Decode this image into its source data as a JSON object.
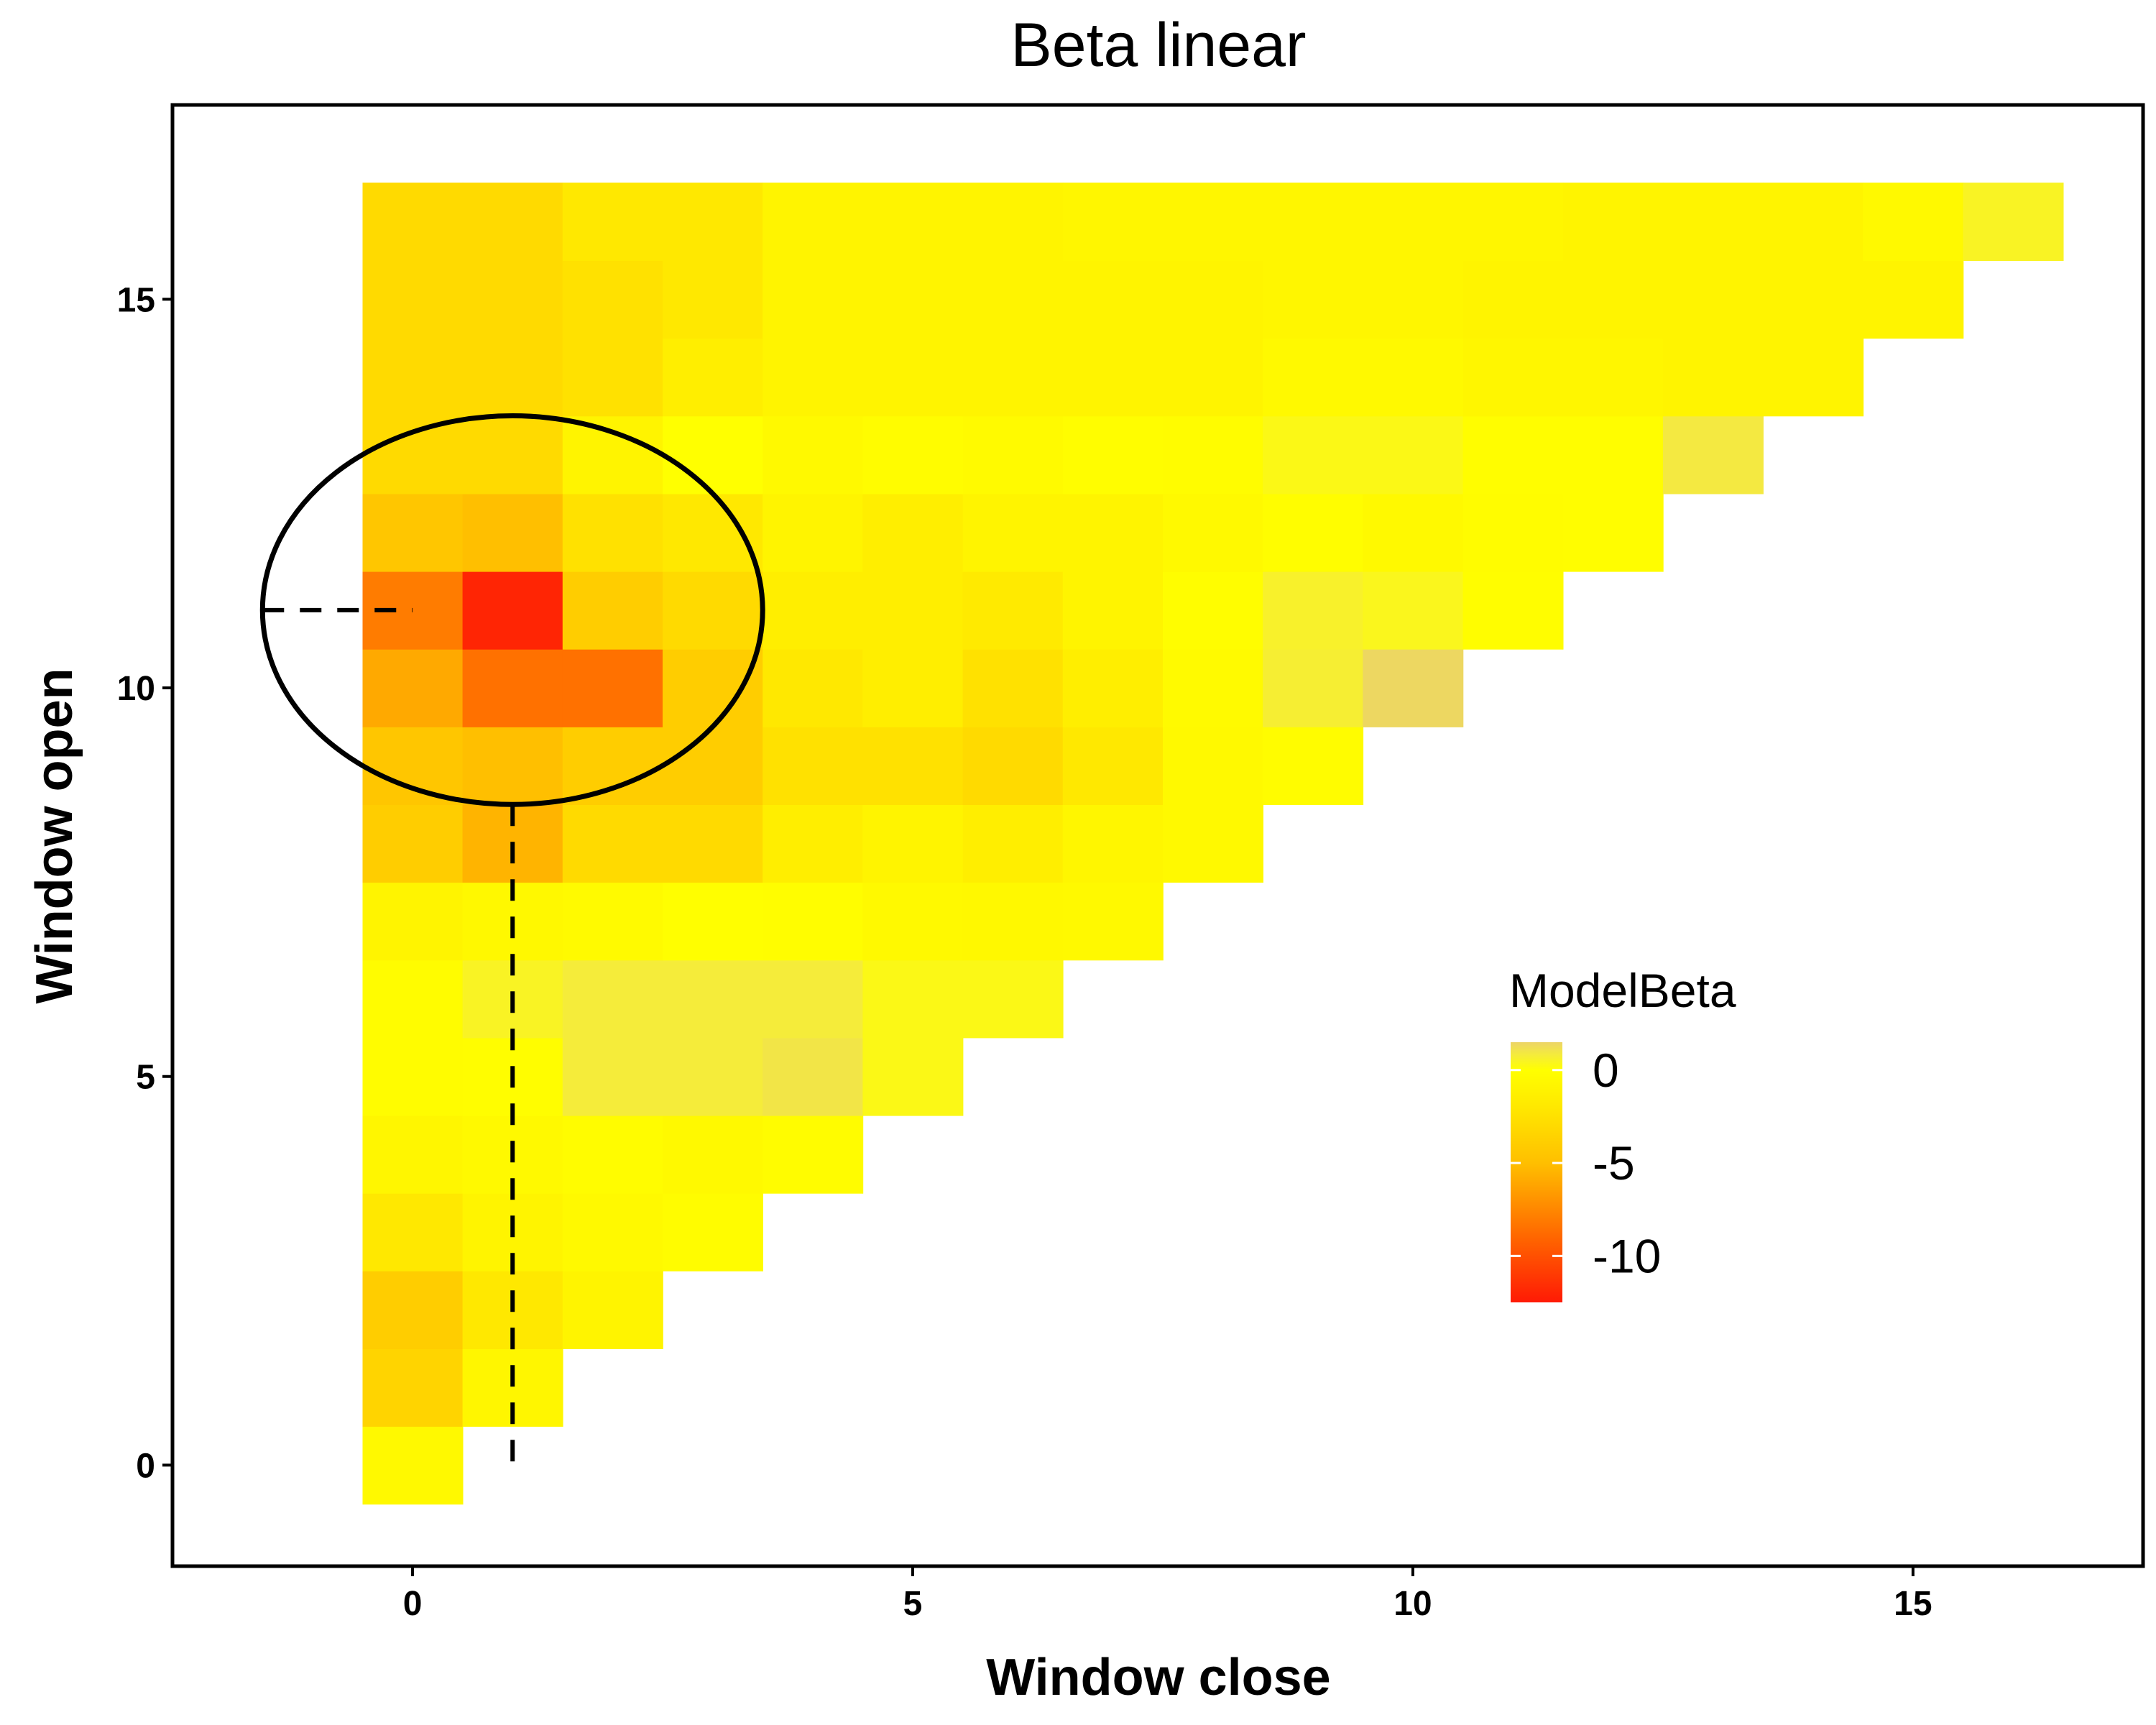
{
  "chart_data": {
    "type": "heatmap",
    "title": "Beta linear",
    "xlabel": "Window close",
    "ylabel": "Window open",
    "x_ticks": [
      "0",
      "5",
      "10",
      "15"
    ],
    "y_ticks": [
      "0",
      "5",
      "10",
      "15"
    ],
    "xlim": [
      -2.4,
      17.3
    ],
    "ylim": [
      -1.3,
      17.5
    ],
    "grid": false,
    "legend": {
      "title": "ModelBeta",
      "labels": [
        "0",
        "-5",
        "-10"
      ],
      "range": [
        -12.5,
        1.5
      ],
      "position": "right-center",
      "color_stops": [
        {
          "value": -12.5,
          "color": "#ff1a05"
        },
        {
          "value": -9,
          "color": "#ff6600"
        },
        {
          "value": -5,
          "color": "#ffbf00"
        },
        {
          "value": -2,
          "color": "#ffe800"
        },
        {
          "value": 0,
          "color": "#ffff00"
        },
        {
          "value": 0.8,
          "color": "#f5ec3a"
        },
        {
          "value": 1.5,
          "color": "#ecd468"
        }
      ]
    },
    "x": [
      0,
      1,
      2,
      3,
      4,
      5,
      6,
      7,
      8,
      9,
      10,
      11,
      12,
      13,
      14,
      15,
      16
    ],
    "y": [
      0,
      1,
      2,
      3,
      4,
      5,
      6,
      7,
      8,
      9,
      10,
      11,
      12,
      13,
      14,
      15,
      16
    ],
    "values": [
      [
        -0.5,
        null,
        null,
        null,
        null,
        null,
        null,
        null,
        null,
        null,
        null,
        null,
        null,
        null,
        null,
        null,
        null
      ],
      [
        -3.5,
        -0.8,
        null,
        null,
        null,
        null,
        null,
        null,
        null,
        null,
        null,
        null,
        null,
        null,
        null,
        null,
        null
      ],
      [
        -4.0,
        -2.0,
        -1.0,
        null,
        null,
        null,
        null,
        null,
        null,
        null,
        null,
        null,
        null,
        null,
        null,
        null,
        null
      ],
      [
        -2.0,
        -1.0,
        -0.5,
        -0.3,
        null,
        null,
        null,
        null,
        null,
        null,
        null,
        null,
        null,
        null,
        null,
        null,
        null
      ],
      [
        -0.8,
        -0.5,
        -0.3,
        -0.5,
        -0.3,
        null,
        null,
        null,
        null,
        null,
        null,
        null,
        null,
        null,
        null,
        null,
        null
      ],
      [
        -0.3,
        -0.2,
        0.8,
        0.8,
        1.0,
        0.3,
        null,
        null,
        null,
        null,
        null,
        null,
        null,
        null,
        null,
        null,
        null
      ],
      [
        -0.3,
        0.5,
        0.8,
        0.8,
        0.8,
        0.3,
        0.3,
        null,
        null,
        null,
        null,
        null,
        null,
        null,
        null,
        null,
        null
      ],
      [
        -1.0,
        -0.6,
        -0.4,
        -0.1,
        -0.2,
        -0.5,
        -0.6,
        -0.5,
        null,
        null,
        null,
        null,
        null,
        null,
        null,
        null,
        null
      ],
      [
        -4.0,
        -5.5,
        -3.0,
        -3.0,
        -1.5,
        -1.0,
        -1.5,
        -0.8,
        -0.5,
        null,
        null,
        null,
        null,
        null,
        null,
        null,
        null
      ],
      [
        -4.5,
        -5.0,
        -4.0,
        -4.0,
        -2.5,
        -2.5,
        -3.0,
        -2.0,
        -0.5,
        -0.3,
        null,
        null,
        null,
        null,
        null,
        null,
        null
      ],
      [
        -6.0,
        -8.5,
        -8.5,
        -4.0,
        -2.0,
        -1.5,
        -2.5,
        -1.5,
        -0.4,
        0.7,
        1.4,
        null,
        null,
        null,
        null,
        null,
        null
      ],
      [
        -8.0,
        -12.0,
        -4.0,
        -3.0,
        -1.5,
        -1.5,
        -1.8,
        -1.0,
        -0.2,
        0.6,
        0.4,
        -0.2,
        null,
        null,
        null,
        null,
        null
      ],
      [
        -4.5,
        -5.0,
        -2.5,
        -2.0,
        -1.0,
        -1.5,
        -1.0,
        -1.0,
        -0.5,
        -0.2,
        -0.5,
        -0.3,
        -0.2,
        null,
        null,
        null,
        null
      ],
      [
        -3.0,
        -3.0,
        -1.0,
        0.0,
        -0.5,
        -0.3,
        -0.4,
        -0.2,
        -0.3,
        0.3,
        0.3,
        -0.2,
        -0.2,
        0.9,
        null,
        null,
        null
      ],
      [
        -3.0,
        -3.0,
        -2.5,
        -1.5,
        -1.0,
        -1.0,
        -1.0,
        -1.0,
        -1.0,
        -0.5,
        -0.5,
        -0.8,
        -0.8,
        -1.0,
        -1.0,
        null,
        null
      ],
      [
        -3.0,
        -3.0,
        -2.5,
        -2.0,
        -1.0,
        -1.0,
        -1.0,
        -1.0,
        -1.0,
        -0.8,
        -0.8,
        -1.0,
        -1.0,
        -1.0,
        -1.0,
        -1.0,
        null
      ],
      [
        -3.0,
        -3.0,
        -2.0,
        -2.0,
        -1.0,
        -1.0,
        -1.0,
        -0.8,
        -0.8,
        -0.8,
        -0.8,
        -0.8,
        -1.0,
        -1.0,
        -1.0,
        -0.5,
        0.5
      ]
    ],
    "annotations": {
      "ellipse": {
        "cx": 1.0,
        "cy": 11.0,
        "rx": 2.5,
        "ry": 2.5
      },
      "dashed_horizontal": {
        "x_from": -1.5,
        "x_to": 0.0,
        "y": 11.0
      },
      "dashed_vertical": {
        "x": 1.0,
        "y_from": 0.0,
        "y_to": 8.5
      }
    }
  }
}
